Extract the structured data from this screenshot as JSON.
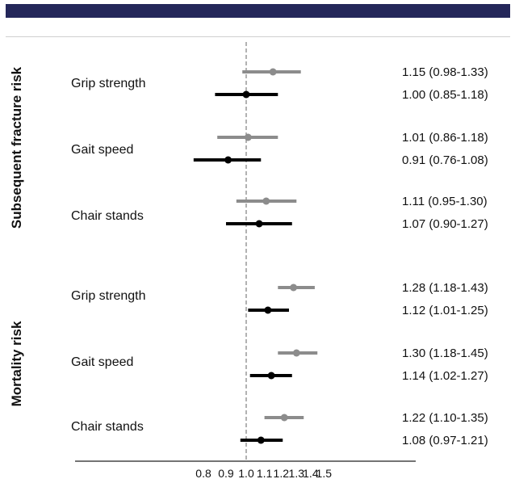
{
  "chart_data": {
    "type": "forest",
    "title": "",
    "xlabel": "",
    "ylabel": "",
    "x_scale": "log",
    "xlim": [
      0.75,
      1.6
    ],
    "xticks": [
      "0.8",
      "0.9",
      "1.0",
      "1.1",
      "1.2",
      "1.3",
      "1.4",
      "1.5"
    ],
    "reference_line": 1.0,
    "series_colors": {
      "upper": "#8c8c8c",
      "lower": "#000000"
    },
    "groups": [
      {
        "name": "Subsequent fracture risk",
        "items": [
          {
            "label": "Grip strength",
            "rows": [
              {
                "color": "upper",
                "est": 1.15,
                "lo": 0.98,
                "hi": 1.33,
                "text": "1.15 (0.98-1.33)"
              },
              {
                "color": "lower",
                "est": 1.0,
                "lo": 0.85,
                "hi": 1.18,
                "text": "1.00 (0.85-1.18)"
              }
            ]
          },
          {
            "label": "Gait speed",
            "rows": [
              {
                "color": "upper",
                "est": 1.01,
                "lo": 0.86,
                "hi": 1.18,
                "text": "1.01 (0.86-1.18)"
              },
              {
                "color": "lower",
                "est": 0.91,
                "lo": 0.76,
                "hi": 1.08,
                "text": "0.91 (0.76-1.08)"
              }
            ]
          },
          {
            "label": "Chair stands",
            "rows": [
              {
                "color": "upper",
                "est": 1.11,
                "lo": 0.95,
                "hi": 1.3,
                "text": "1.11 (0.95-1.30)"
              },
              {
                "color": "lower",
                "est": 1.07,
                "lo": 0.9,
                "hi": 1.27,
                "text": "1.07 (0.90-1.27)"
              }
            ]
          }
        ]
      },
      {
        "name": "Mortality risk",
        "items": [
          {
            "label": "Grip strength",
            "rows": [
              {
                "color": "upper",
                "est": 1.28,
                "lo": 1.18,
                "hi": 1.43,
                "text": "1.28 (1.18-1.43)"
              },
              {
                "color": "lower",
                "est": 1.12,
                "lo": 1.01,
                "hi": 1.25,
                "text": "1.12 (1.01-1.25)"
              }
            ]
          },
          {
            "label": "Gait speed",
            "rows": [
              {
                "color": "upper",
                "est": 1.3,
                "lo": 1.18,
                "hi": 1.45,
                "text": "1.30 (1.18-1.45)"
              },
              {
                "color": "lower",
                "est": 1.14,
                "lo": 1.02,
                "hi": 1.27,
                "text": "1.14 (1.02-1.27)"
              }
            ]
          },
          {
            "label": "Chair stands",
            "rows": [
              {
                "color": "upper",
                "est": 1.22,
                "lo": 1.1,
                "hi": 1.35,
                "text": "1.22 (1.10-1.35)"
              },
              {
                "color": "lower",
                "est": 1.08,
                "lo": 0.97,
                "hi": 1.21,
                "text": "1.08 (0.97-1.21)"
              }
            ]
          }
        ]
      }
    ]
  }
}
